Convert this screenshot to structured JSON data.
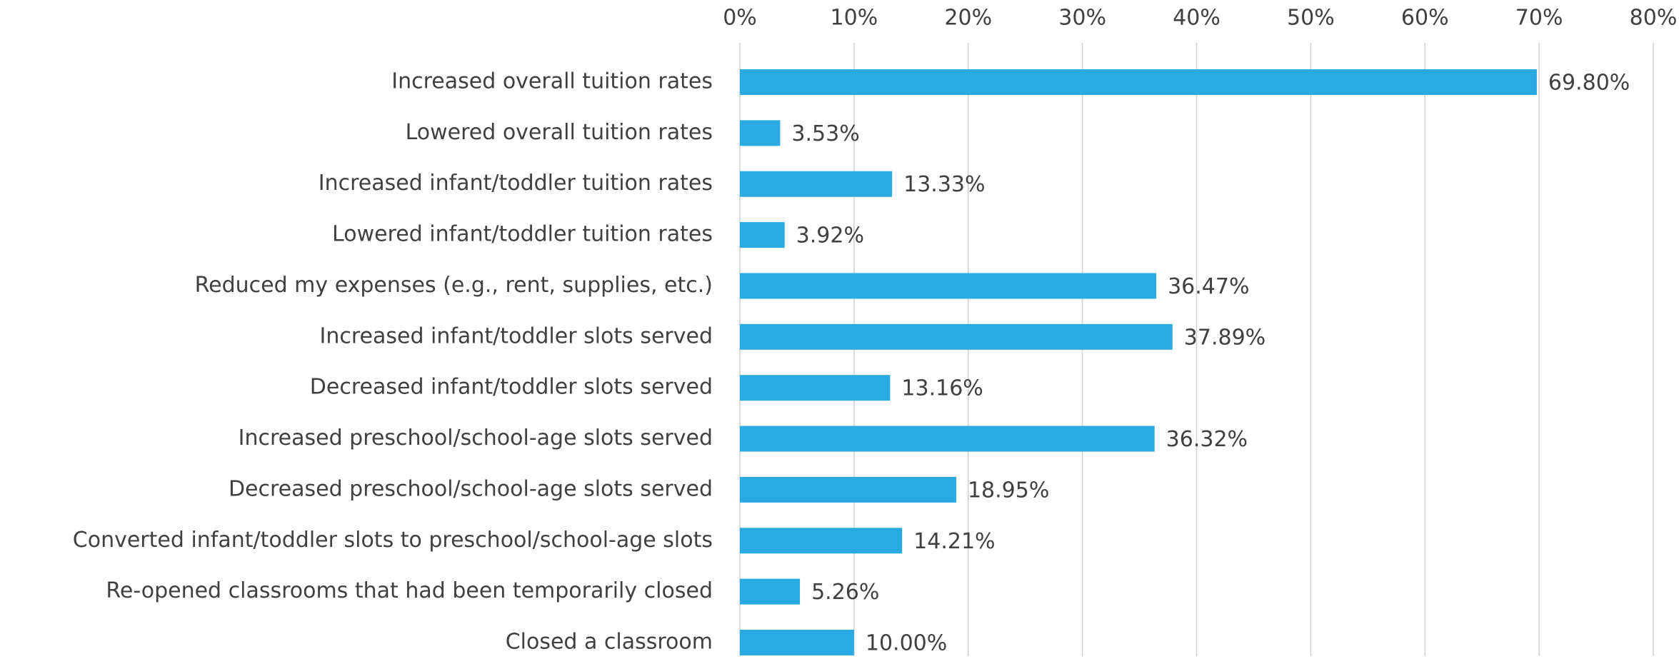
{
  "chart_data": {
    "type": "hbar",
    "categories": [
      "Increased overall tuition rates",
      "Lowered overall tuition rates",
      "Increased infant/toddler tuition rates",
      "Lowered infant/toddler tuition rates",
      "Reduced my expenses (e.g., rent, supplies, etc.)",
      "Increased infant/toddler slots served",
      "Decreased infant/toddler slots served",
      "Increased preschool/school-age slots served",
      "Decreased preschool/school-age slots served",
      "Converted infant/toddler slots to preschool/school-age slots",
      "Re-opened classrooms that had been temporarily closed",
      "Closed a classroom"
    ],
    "values": [
      69.8,
      3.53,
      13.33,
      3.92,
      36.47,
      37.89,
      13.16,
      36.32,
      18.95,
      14.21,
      5.26,
      10.0
    ],
    "value_labels": [
      "69.80%",
      "3.53%",
      "13.33%",
      "3.92%",
      "36.47%",
      "37.89%",
      "13.16%",
      "36.32%",
      "18.95%",
      "14.21%",
      "5.26%",
      "10.00%"
    ],
    "color": "#29abe2",
    "xlim": [
      0,
      80
    ],
    "xticks": [
      {
        "value": 0,
        "label": "0%"
      },
      {
        "value": 10,
        "label": "10%"
      },
      {
        "value": 20,
        "label": "20%"
      },
      {
        "value": 30,
        "label": "30%"
      },
      {
        "value": 40,
        "label": "40%"
      },
      {
        "value": 50,
        "label": "50%"
      },
      {
        "value": 60,
        "label": "60%"
      },
      {
        "value": 70,
        "label": "70%"
      },
      {
        "value": 80,
        "label": "80%"
      }
    ],
    "grid": true
  }
}
